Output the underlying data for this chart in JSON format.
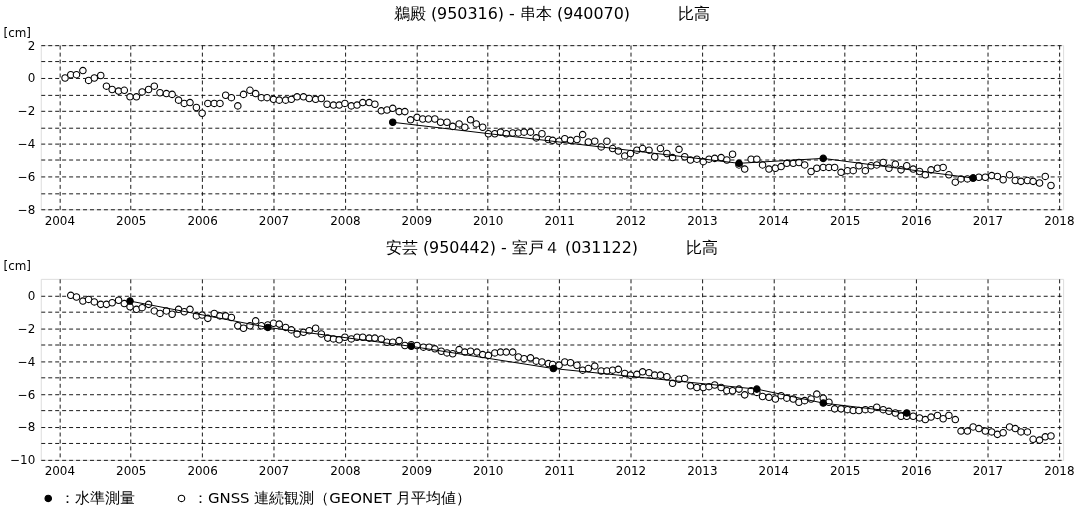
{
  "chart_data": [
    {
      "type": "scatter",
      "title": "鵜殿 (950316) - 串本 (940070)　　　比高",
      "ylabel": "[cm]",
      "xlim": [
        2003.74,
        2018.06
      ],
      "ylim": [
        -8,
        2
      ],
      "xticks": [
        2004,
        2005,
        2006,
        2007,
        2008,
        2009,
        2010,
        2011,
        2012,
        2013,
        2014,
        2015,
        2016,
        2017,
        2018
      ],
      "yticks": [
        -8,
        {
          "value": -7,
          "label": null
        },
        -6,
        {
          "value": -5,
          "label": null
        },
        -4,
        {
          "value": -3,
          "label": null
        },
        -2,
        {
          "value": -1,
          "label": null
        },
        0,
        {
          "value": 1,
          "label": null
        },
        2
      ],
      "grid": true,
      "legend": false,
      "marker": "circle",
      "series": [
        {
          "type": "scatter",
          "color": "#ffffff",
          "x": [
            2004.08,
            2004.16,
            2004.24,
            2004.33,
            2004.41,
            2004.49,
            2004.58,
            2004.66,
            2004.74,
            2004.83,
            2004.91,
            2004.99,
            2005.08,
            2005.16,
            2005.25,
            2005.33,
            2005.41,
            2005.5,
            2005.58,
            2005.67,
            2005.75,
            2005.83,
            2005.92,
            2006.0,
            2006.08,
            2006.17,
            2006.25,
            2006.33,
            2006.41,
            2006.5,
            2006.58,
            2006.67,
            2006.75,
            2006.83,
            2006.91,
            2007.0,
            2007.08,
            2007.17,
            2007.25,
            2007.33,
            2007.42,
            2007.5,
            2007.59,
            2007.67,
            2007.75,
            2007.84,
            2007.92,
            2008.0,
            2008.09,
            2008.17,
            2008.25,
            2008.34,
            2008.42,
            2008.51,
            2008.59,
            2008.67,
            2008.76,
            2008.84,
            2008.92,
            2009.01,
            2009.09,
            2009.17,
            2009.26,
            2009.34,
            2009.43,
            2009.51,
            2009.6,
            2009.68,
            2009.76,
            2009.84,
            2009.93,
            2010.01,
            2010.1,
            2010.18,
            2010.26,
            2010.35,
            2010.43,
            2010.51,
            2010.6,
            2010.68,
            2010.76,
            2010.85,
            2010.91,
            2011.0,
            2011.08,
            2011.16,
            2011.25,
            2011.33,
            2011.41,
            2011.5,
            2011.59,
            2011.67,
            2011.75,
            2011.83,
            2011.92,
            2012.0,
            2012.09,
            2012.17,
            2012.26,
            2012.34,
            2012.42,
            2012.51,
            2012.59,
            2012.68,
            2012.76,
            2012.84,
            2012.93,
            2013.02,
            2013.1,
            2013.18,
            2013.27,
            2013.35,
            2013.43,
            2013.52,
            2013.6,
            2013.69,
            2013.77,
            2013.85,
            2013.94,
            2014.03,
            2014.11,
            2014.19,
            2014.28,
            2014.36,
            2014.44,
            2014.53,
            2014.61,
            2014.7,
            2014.78,
            2014.86,
            2014.95,
            2015.04,
            2015.12,
            2015.2,
            2015.29,
            2015.37,
            2015.45,
            2015.54,
            2015.62,
            2015.71,
            2015.79,
            2015.87,
            2015.96,
            2016.05,
            2016.13,
            2016.21,
            2016.3,
            2016.38,
            2016.46,
            2016.55,
            2016.63,
            2016.72,
            2016.8,
            2016.88,
            2016.97,
            2017.06,
            2017.14,
            2017.22,
            2017.31,
            2017.39,
            2017.47,
            2017.56,
            2017.64,
            2017.73,
            2017.81,
            2017.89
          ],
          "values": [
            0.0,
            0.2,
            0.2,
            0.45,
            -0.15,
            0.0,
            0.15,
            -0.5,
            -0.7,
            -0.8,
            -0.75,
            -1.15,
            -1.15,
            -0.85,
            -0.7,
            -0.5,
            -0.9,
            -0.95,
            -1.0,
            -1.35,
            -1.55,
            -1.5,
            -1.8,
            -2.15,
            -1.55,
            -1.55,
            -1.55,
            -1.05,
            -1.2,
            -1.7,
            -1.0,
            -0.75,
            -0.95,
            -1.2,
            -1.2,
            -1.3,
            -1.35,
            -1.35,
            -1.3,
            -1.15,
            -1.15,
            -1.25,
            -1.3,
            -1.25,
            -1.6,
            -1.65,
            -1.65,
            -1.55,
            -1.7,
            -1.65,
            -1.5,
            -1.5,
            -1.6,
            -2.0,
            -1.95,
            -1.85,
            -2.05,
            -2.05,
            -2.55,
            -2.4,
            -2.5,
            -2.5,
            -2.5,
            -2.7,
            -2.7,
            -2.95,
            -2.8,
            -3.0,
            -2.55,
            -2.8,
            -3.0,
            -3.4,
            -3.4,
            -3.3,
            -3.4,
            -3.35,
            -3.35,
            -3.3,
            -3.3,
            -3.65,
            -3.4,
            -3.75,
            -3.8,
            -3.85,
            -3.7,
            -3.8,
            -3.75,
            -3.45,
            -3.9,
            -3.85,
            -4.2,
            -3.85,
            -4.3,
            -4.45,
            -4.75,
            -4.6,
            -4.4,
            -4.3,
            -4.4,
            -4.8,
            -4.3,
            -4.6,
            -4.85,
            -4.35,
            -4.8,
            -5.0,
            -4.95,
            -5.1,
            -4.95,
            -4.9,
            -4.85,
            -5.0,
            -4.65,
            -5.3,
            -5.55,
            -4.95,
            -4.95,
            -5.3,
            -5.55,
            -5.5,
            -5.4,
            -5.2,
            -5.2,
            -5.15,
            -5.3,
            -5.7,
            -5.5,
            -5.45,
            -5.45,
            -5.45,
            -5.75,
            -5.65,
            -5.65,
            -5.35,
            -5.65,
            -5.35,
            -5.3,
            -5.15,
            -5.5,
            -5.25,
            -5.6,
            -5.35,
            -5.55,
            -5.7,
            -5.9,
            -5.6,
            -5.5,
            -5.45,
            -5.9,
            -6.35,
            -6.15,
            -6.15,
            -6.1,
            -6.05,
            -6.05,
            -5.95,
            -6.0,
            -6.2,
            -5.9,
            -6.25,
            -6.3,
            -6.25,
            -6.3,
            -6.4,
            -6.0,
            -6.55
          ]
        },
        {
          "type": "line",
          "color": "#000000",
          "x": [
            2008.67,
            2013.52,
            2014.7,
            2016.8
          ],
          "values": [
            -2.7,
            -5.2,
            -4.9,
            -6.1
          ]
        }
      ]
    },
    {
      "type": "scatter",
      "title": "安芸 (950442) - 室戸４ (031122)　　　比高",
      "ylabel": "[cm]",
      "xlim": [
        2003.74,
        2018.06
      ],
      "ylim": [
        -10,
        1
      ],
      "xticks": [
        2004,
        2005,
        2006,
        2007,
        2008,
        2009,
        2010,
        2011,
        2012,
        2013,
        2014,
        2015,
        2016,
        2017,
        2018
      ],
      "yticks": [
        -10,
        {
          "value": -9,
          "label": null
        },
        -8,
        {
          "value": -7,
          "label": null
        },
        -6,
        {
          "value": -5,
          "label": null
        },
        -4,
        {
          "value": -3,
          "label": null
        },
        -2,
        {
          "value": -1,
          "label": null
        },
        0
      ],
      "grid": true,
      "legend": "bottom",
      "marker": "circle",
      "series": [
        {
          "type": "line",
          "name": "：水準測量",
          "color": "#000000",
          "x": [
            2004.99,
            2006.92,
            2008.93,
            2010.92,
            2013.77,
            2014.7,
            2015.87
          ],
          "values": [
            -0.35,
            -1.95,
            -3.1,
            -4.45,
            -5.7,
            -6.55,
            -7.15
          ]
        },
        {
          "type": "scatter",
          "name": "：GNSS 連続観測（GEONET 月平均値）",
          "color": "#ffffff",
          "x": [
            2004.16,
            2004.24,
            2004.33,
            2004.41,
            2004.49,
            2004.58,
            2004.66,
            2004.74,
            2004.83,
            2004.91,
            2004.99,
            2005.08,
            2005.16,
            2005.25,
            2005.33,
            2005.41,
            2005.5,
            2005.58,
            2005.67,
            2005.75,
            2005.83,
            2005.92,
            2006.0,
            2006.08,
            2006.17,
            2006.25,
            2006.33,
            2006.41,
            2006.5,
            2006.58,
            2006.67,
            2006.75,
            2006.83,
            2006.92,
            2007.0,
            2007.08,
            2007.17,
            2007.25,
            2007.33,
            2007.42,
            2007.5,
            2007.59,
            2007.67,
            2007.76,
            2007.84,
            2007.92,
            2008.0,
            2008.09,
            2008.17,
            2008.25,
            2008.34,
            2008.42,
            2008.51,
            2008.59,
            2008.67,
            2008.76,
            2008.84,
            2008.93,
            2009.01,
            2009.1,
            2009.18,
            2009.26,
            2009.35,
            2009.43,
            2009.51,
            2009.6,
            2009.68,
            2009.76,
            2009.85,
            2009.93,
            2010.01,
            2010.1,
            2010.18,
            2010.26,
            2010.35,
            2010.43,
            2010.51,
            2010.6,
            2010.68,
            2010.76,
            2010.85,
            2010.91,
            2011.0,
            2011.08,
            2011.16,
            2011.25,
            2011.33,
            2011.41,
            2011.5,
            2011.59,
            2011.67,
            2011.75,
            2011.83,
            2011.92,
            2012.0,
            2012.09,
            2012.17,
            2012.26,
            2012.34,
            2012.42,
            2012.51,
            2012.59,
            2012.68,
            2012.76,
            2012.84,
            2012.93,
            2013.02,
            2013.1,
            2013.18,
            2013.27,
            2013.35,
            2013.43,
            2013.52,
            2013.6,
            2013.69,
            2013.77,
            2013.85,
            2013.94,
            2014.03,
            2014.11,
            2014.19,
            2014.28,
            2014.36,
            2014.44,
            2014.53,
            2014.61,
            2014.7,
            2014.78,
            2014.86,
            2014.95,
            2015.04,
            2015.12,
            2015.2,
            2015.29,
            2015.37,
            2015.45,
            2015.54,
            2015.62,
            2015.71,
            2015.79,
            2015.87,
            2015.96,
            2016.05,
            2016.13,
            2016.21,
            2016.3,
            2016.38,
            2016.46,
            2016.55,
            2016.63,
            2016.72,
            2016.8,
            2016.88,
            2016.97,
            2017.06,
            2017.14,
            2017.22,
            2017.31,
            2017.39,
            2017.47,
            2017.56,
            2017.64,
            2017.73,
            2017.81,
            2017.89
          ],
          "values": [
            0.0,
            -0.1,
            -0.35,
            -0.25,
            -0.4,
            -0.55,
            -0.55,
            -0.45,
            -0.3,
            -0.5,
            -0.7,
            -0.85,
            -0.75,
            -0.55,
            -0.95,
            -1.1,
            -0.95,
            -1.15,
            -0.85,
            -1.0,
            -0.85,
            -1.25,
            -1.2,
            -1.4,
            -1.1,
            -1.25,
            -1.25,
            -1.35,
            -1.85,
            -2.0,
            -1.85,
            -1.55,
            -1.85,
            -1.8,
            -1.7,
            -1.75,
            -1.95,
            -2.1,
            -2.35,
            -2.25,
            -2.15,
            -2.0,
            -2.35,
            -2.6,
            -2.65,
            -2.7,
            -2.55,
            -2.65,
            -2.55,
            -2.55,
            -2.6,
            -2.6,
            -2.65,
            -2.85,
            -2.85,
            -2.75,
            -3.05,
            -3.0,
            -3.05,
            -3.15,
            -3.15,
            -3.25,
            -3.4,
            -3.5,
            -3.55,
            -3.3,
            -3.45,
            -3.4,
            -3.45,
            -3.6,
            -3.65,
            -3.5,
            -3.45,
            -3.45,
            -3.45,
            -3.75,
            -3.85,
            -3.8,
            -4.0,
            -4.05,
            -4.15,
            -4.2,
            -4.25,
            -4.05,
            -4.1,
            -4.25,
            -4.55,
            -4.45,
            -4.3,
            -4.6,
            -4.6,
            -4.55,
            -4.5,
            -4.75,
            -4.85,
            -4.8,
            -4.65,
            -4.7,
            -4.85,
            -4.85,
            -4.95,
            -5.35,
            -5.1,
            -5.05,
            -5.5,
            -5.6,
            -5.6,
            -5.55,
            -5.45,
            -5.6,
            -5.8,
            -5.8,
            -5.7,
            -6.05,
            -5.8,
            -5.9,
            -6.15,
            -6.2,
            -6.3,
            -6.1,
            -6.25,
            -6.3,
            -6.5,
            -6.4,
            -6.3,
            -6.0,
            -6.25,
            -6.5,
            -6.9,
            -6.9,
            -6.95,
            -7.0,
            -7.0,
            -6.95,
            -6.95,
            -6.8,
            -6.95,
            -7.05,
            -7.15,
            -7.35,
            -7.35,
            -7.35,
            -7.45,
            -7.55,
            -7.4,
            -7.3,
            -7.5,
            -7.3,
            -7.55,
            -8.25,
            -8.25,
            -8.0,
            -8.1,
            -8.25,
            -8.3,
            -8.45,
            -8.35,
            -8.0,
            -8.1,
            -8.3,
            -8.3,
            -8.75,
            -8.8,
            -8.6,
            -8.55
          ]
        }
      ]
    }
  ]
}
